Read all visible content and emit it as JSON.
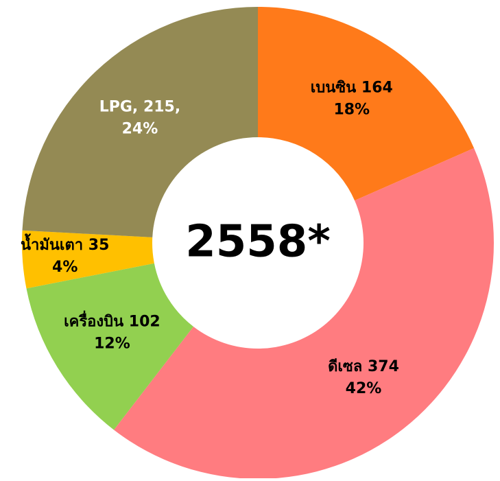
{
  "chart_data": {
    "type": "donut",
    "center_label": "2558*",
    "categories": [
      "เบนซิน",
      "ดีเซล",
      "เครื่องบิน",
      "น้ำมันเตา",
      "LPG,"
    ],
    "values": [
      164,
      374,
      102,
      35,
      215
    ],
    "value_labels": [
      "164",
      "374",
      "102",
      "35",
      "215,"
    ],
    "percents": [
      18,
      42,
      12,
      4,
      24
    ],
    "percent_labels": [
      "18%",
      "42%",
      "12%",
      "4%",
      "24%"
    ],
    "colors": [
      "#ff7a1a",
      "#ff7c80",
      "#92d050",
      "#ffc000",
      "#948a54"
    ],
    "label_colors": [
      "#000000",
      "#000000",
      "#000000",
      "#000000",
      "#ffffff"
    ]
  }
}
